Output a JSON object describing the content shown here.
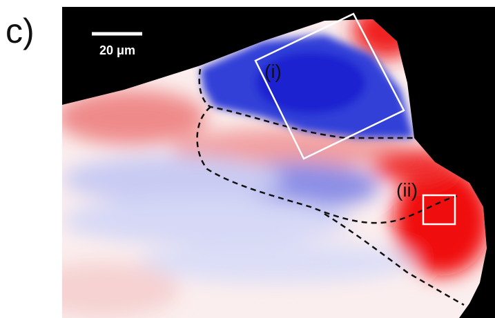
{
  "panel_label": "c)",
  "scale_bar": {
    "label": "20 μm"
  },
  "regions": [
    {
      "label": "(i)"
    },
    {
      "label": "(ii)"
    }
  ]
}
